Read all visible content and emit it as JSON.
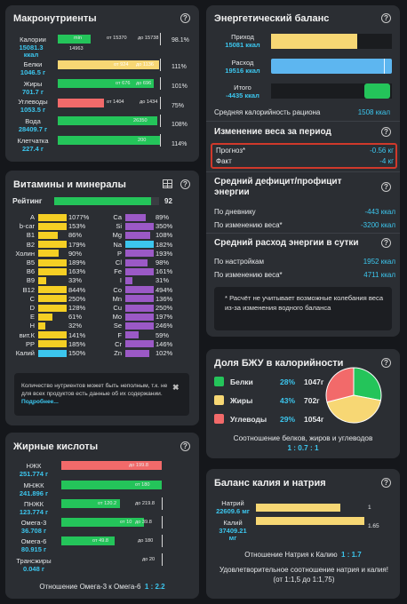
{
  "macro": {
    "title": "Макронутриенты",
    "rows": [
      {
        "name": "Калории",
        "value": "15081.3 ккал",
        "inbar": "min",
        "inbar2": "14963",
        "from": "от 15370",
        "to": "до 15738",
        "pct": "98.1%"
      },
      {
        "name": "Белки",
        "value": "1046.5 г",
        "inbar": "от 924",
        "to": "до 1136",
        "pct": "111%"
      },
      {
        "name": "Жиры",
        "value": "701.7 г",
        "inbar": "от 676",
        "to": "до 696",
        "pct": "101%"
      },
      {
        "name": "Углеводы",
        "value": "1053.5 г",
        "from": "от 1404",
        "to": "до 1434",
        "pct": "75%"
      },
      {
        "name": "Вода",
        "value": "28409.7 г",
        "inbar": "26350",
        "pct": "108%"
      },
      {
        "name": "Клетчатка",
        "value": "227.4 г",
        "inbar": "200",
        "pct": "114%"
      }
    ]
  },
  "vitamins": {
    "title": "Витамины и минералы",
    "rating_label": "Рейтинг",
    "rating": "92",
    "rating_level": 0.92,
    "left": [
      {
        "n": "A",
        "p": "1077%",
        "c": "#f5cf24"
      },
      {
        "n": "b-car",
        "p": "153%",
        "c": "#f5cf24"
      },
      {
        "n": "B1",
        "p": "86%",
        "c": "#f5cf24"
      },
      {
        "n": "B2",
        "p": "179%",
        "c": "#f5cf24"
      },
      {
        "n": "Холин",
        "p": "90%",
        "c": "#f5cf24"
      },
      {
        "n": "B5",
        "p": "189%",
        "c": "#f5cf24"
      },
      {
        "n": "B6",
        "p": "163%",
        "c": "#f5cf24"
      },
      {
        "n": "B9",
        "p": "33%",
        "c": "#f5cf24"
      },
      {
        "n": "B12",
        "p": "844%",
        "c": "#f5cf24"
      },
      {
        "n": "C",
        "p": "250%",
        "c": "#f5cf24"
      },
      {
        "n": "D",
        "p": "128%",
        "c": "#f5cf24"
      },
      {
        "n": "E",
        "p": "61%",
        "c": "#f5cf24"
      },
      {
        "n": "H",
        "p": "32%",
        "c": "#f5cf24"
      },
      {
        "n": "вит.К",
        "p": "141%",
        "c": "#f5cf24"
      },
      {
        "n": "PP",
        "p": "185%",
        "c": "#f5cf24"
      },
      {
        "n": "Калий",
        "p": "150%",
        "c": "#3cc6ee"
      }
    ],
    "right": [
      {
        "n": "Ca",
        "p": "89%",
        "c": "#9b59c6"
      },
      {
        "n": "Si",
        "p": "350%",
        "c": "#9b59c6"
      },
      {
        "n": "Mg",
        "p": "108%",
        "c": "#9b59c6"
      },
      {
        "n": "Na",
        "p": "182%",
        "c": "#3cc6ee"
      },
      {
        "n": "P",
        "p": "193%",
        "c": "#9b59c6"
      },
      {
        "n": "Cl",
        "p": "98%",
        "c": "#9b59c6"
      },
      {
        "n": "Fe",
        "p": "161%",
        "c": "#9b59c6"
      },
      {
        "n": "I",
        "p": "31%",
        "c": "#9b59c6"
      },
      {
        "n": "Co",
        "p": "494%",
        "c": "#9b59c6"
      },
      {
        "n": "Mn",
        "p": "136%",
        "c": "#9b59c6"
      },
      {
        "n": "Cu",
        "p": "250%",
        "c": "#9b59c6"
      },
      {
        "n": "Mo",
        "p": "197%",
        "c": "#9b59c6"
      },
      {
        "n": "Se",
        "p": "246%",
        "c": "#9b59c6"
      },
      {
        "n": "F",
        "p": "59%",
        "c": "#9b59c6"
      },
      {
        "n": "Cr",
        "p": "146%",
        "c": "#9b59c6"
      },
      {
        "n": "Zn",
        "p": "102%",
        "c": "#9b59c6"
      }
    ],
    "note": "Количество нутриентов может быть неполным, т.к. не для всех продуктов есть данные об их содержании.",
    "more": "Подробнее..."
  },
  "fatty": {
    "title": "Жирные кислоты",
    "rows": [
      {
        "name": "НЖК",
        "value": "251.774 г",
        "inbar": "до 199.8"
      },
      {
        "name": "МНЖК",
        "value": "241.896 г",
        "inbar": "от 180"
      },
      {
        "name": "ПНЖК",
        "value": "123.774 г",
        "inbar": "от 120.2",
        "to": "до 219.8"
      },
      {
        "name": "Омега-3",
        "value": "36.708 г",
        "inbar": "от 10",
        "to": "до 39.8"
      },
      {
        "name": "Омега-6",
        "value": "80.915 г",
        "inbar": "от 49.8",
        "to": "до 180"
      },
      {
        "name": "Трансжиры",
        "value": "0.048 г",
        "to": "до 20"
      }
    ],
    "ratio_label": "Отношение Омега-3 к Омега-6",
    "ratio": "1 : 2.2"
  },
  "energy": {
    "title": "Энергетический баланс",
    "in_label": "Приход",
    "in_val": "15081 ккал",
    "out_label": "Расход",
    "out_val": "19516 ккал",
    "tot_label": "Итого",
    "tot_val": "-4435 ккал",
    "avg_label": "Средняя калорийность рациона",
    "avg_val": "1508 ккал",
    "weight_title": "Изменение веса за период",
    "forecast_label": "Прогноз*",
    "forecast_val": "-0.56 кг",
    "fact_label": "Факт",
    "fact_val": "-4 кг",
    "def_title": "Средний дефицит/профицит энергии",
    "diary_label": "По дневнику",
    "diary_val": "-443 ккал",
    "wchange_label": "По изменению веса*",
    "wchange_val": "-3200 ккал",
    "exp_title": "Средний расход энергии в сутки",
    "set_label": "По настройкам",
    "set_val": "1952 ккал",
    "wchange2_label": "По изменению веса*",
    "wchange2_val": "4711 ккал",
    "footnote": "* Расчёт не учитывает возможные колебания веса из-за изменения водного баланса"
  },
  "bju": {
    "title": "Доля БЖУ в калорийности",
    "items": [
      {
        "name": "Белки",
        "pct": "28%",
        "kcal": "1047г",
        "color": "#24c45a",
        "share": 0.28
      },
      {
        "name": "Жиры",
        "pct": "43%",
        "kcal": "702г",
        "color": "#f7d774",
        "share": 0.43
      },
      {
        "name": "Углеводы",
        "pct": "29%",
        "kcal": "1054г",
        "color": "#f26a6a",
        "share": 0.29
      }
    ],
    "ratio_label": "Соотношение белков, жиров и углеводов",
    "ratio": "1 : 0.7 : 1"
  },
  "kna": {
    "title": "Баланс калия и натрия",
    "na_label": "Натрий",
    "na_val": "22609.6 мг",
    "na_ratio": "1",
    "k_label": "Калий",
    "k_val": "37409.21 мг",
    "k_ratio": "1.65",
    "ratio_label": "Отношение Натрия к Калию",
    "ratio": "1 : 1.7",
    "note": "Удовлетворительное соотношение натрия и калия! (от 1:1,5 до 1:1,75)"
  }
}
